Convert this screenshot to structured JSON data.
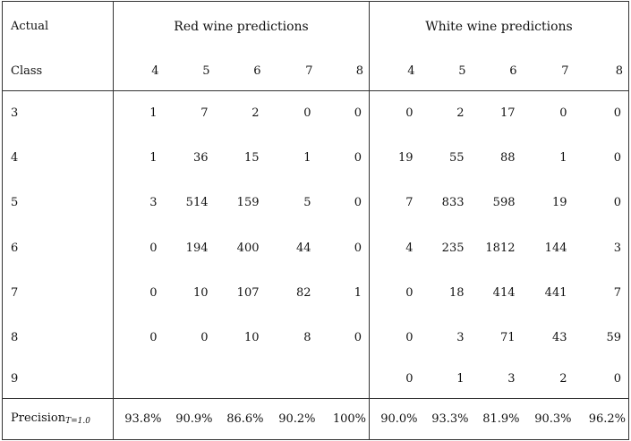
{
  "header": {
    "actual_label": "Actual",
    "class_label": "Class",
    "red_group": "Red wine predictions",
    "white_group": "White wine predictions",
    "red_columns": [
      "4",
      "5",
      "6",
      "7",
      "8"
    ],
    "white_columns": [
      "4",
      "5",
      "6",
      "7",
      "8"
    ]
  },
  "rows": [
    {
      "class": "3",
      "red": [
        "1",
        "7",
        "2",
        "0",
        "0"
      ],
      "white": [
        "0",
        "2",
        "17",
        "0",
        "0"
      ]
    },
    {
      "class": "4",
      "red": [
        "1",
        "36",
        "15",
        "1",
        "0"
      ],
      "white": [
        "19",
        "55",
        "88",
        "1",
        "0"
      ]
    },
    {
      "class": "5",
      "red": [
        "3",
        "514",
        "159",
        "5",
        "0"
      ],
      "white": [
        "7",
        "833",
        "598",
        "19",
        "0"
      ]
    },
    {
      "class": "6",
      "red": [
        "0",
        "194",
        "400",
        "44",
        "0"
      ],
      "white": [
        "4",
        "235",
        "1812",
        "144",
        "3"
      ]
    },
    {
      "class": "7",
      "red": [
        "0",
        "10",
        "107",
        "82",
        "1"
      ],
      "white": [
        "0",
        "18",
        "414",
        "441",
        "7"
      ]
    },
    {
      "class": "8",
      "red": [
        "0",
        "0",
        "10",
        "8",
        "0"
      ],
      "white": [
        "0",
        "3",
        "71",
        "43",
        "59"
      ]
    },
    {
      "class": "9",
      "red": [
        "",
        "",
        "",
        "",
        ""
      ],
      "white": [
        "0",
        "1",
        "3",
        "2",
        "0"
      ]
    }
  ],
  "footer": {
    "label_main": "Precision",
    "label_sub": "T=1.0",
    "red": [
      "93.8%",
      "90.9%",
      "86.6%",
      "90.2%",
      "100%"
    ],
    "white": [
      "90.0%",
      "93.3%",
      "81.9%",
      "90.3%",
      "96.2%"
    ]
  }
}
